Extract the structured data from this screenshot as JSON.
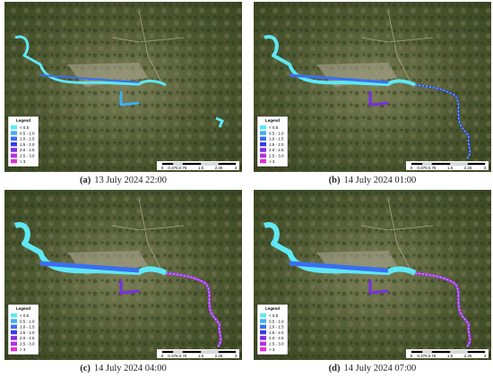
{
  "panels": [
    {
      "caption": {
        "label": "(a)",
        "text": "13 July 2024 22:00"
      }
    },
    {
      "caption": {
        "label": "(b)",
        "text": "14 July 2024 01:00"
      }
    },
    {
      "caption": {
        "label": "(c)",
        "text": "14 July 2024 04:00"
      }
    },
    {
      "caption": {
        "label": "(d)",
        "text": "14 July 2024 07:00"
      }
    }
  ],
  "legend": {
    "title": "Legend",
    "classes": [
      {
        "label": "< 0.5",
        "color": "#5ee8f5"
      },
      {
        "label": "0.5 - 1.0",
        "color": "#3fb0f0"
      },
      {
        "label": "1.0 - 1.5",
        "color": "#3a6ff0"
      },
      {
        "label": "1.5 - 2.0",
        "color": "#3a3ae8"
      },
      {
        "label": "2.0 - 2.5",
        "color": "#7a2fe0"
      },
      {
        "label": "2.5 - 3.0",
        "color": "#b72fe0"
      },
      {
        "label": "> 3",
        "color": "#e030d8"
      }
    ]
  },
  "scale_bar": {
    "ticks": [
      "0",
      "0.375",
      "0.75",
      "1.5",
      "2.25",
      "3"
    ]
  }
}
